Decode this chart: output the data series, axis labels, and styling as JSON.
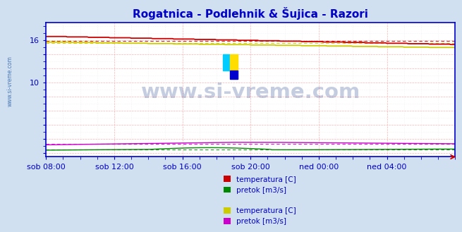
{
  "title": "Rogatnica - Podlehnik & Šujica - Razori",
  "title_color": "#0000cc",
  "bg_color": "#d0e0f0",
  "plot_bg_color": "#ffffff",
  "grid_color_major": "#ffaaaa",
  "grid_color_minor": "#dddddd",
  "watermark": "www.si-vreme.com",
  "watermark_color": "#1a3a8a",
  "watermark_alpha": 0.25,
  "xticklabels": [
    "sob 08:00",
    "sob 12:00",
    "sob 16:00",
    "sob 20:00",
    "ned 00:00",
    "ned 04:00"
  ],
  "ytick_positions": [
    10,
    16
  ],
  "ylim": [
    -0.5,
    18.5
  ],
  "xlim": [
    0,
    288
  ],
  "n_points": 289,
  "temp1_start": 16.5,
  "temp1_end": 15.0,
  "temp1_color": "#cc0000",
  "temp1_avg": 15.85,
  "temp2_start": 15.7,
  "temp2_end": 14.4,
  "temp2_color": "#cccc00",
  "temp2_avg": 15.55,
  "flow1_color": "#008800",
  "flow1_avg": 0.55,
  "flow2_color": "#cc00cc",
  "flow2_avg": 1.3,
  "legend_labels_1": [
    "temperatura [C]",
    "pretok [m3/s]"
  ],
  "legend_labels_2": [
    "temperatura [C]",
    "pretok [m3/s]"
  ],
  "legend_colors_1": [
    "#cc0000",
    "#008800"
  ],
  "legend_colors_2": [
    "#cccc00",
    "#cc00cc"
  ],
  "axis_color": "#0000cc",
  "tick_color": "#0000cc",
  "tick_fontsize": 8,
  "title_fontsize": 11,
  "sidewater_color": "#3366aa"
}
